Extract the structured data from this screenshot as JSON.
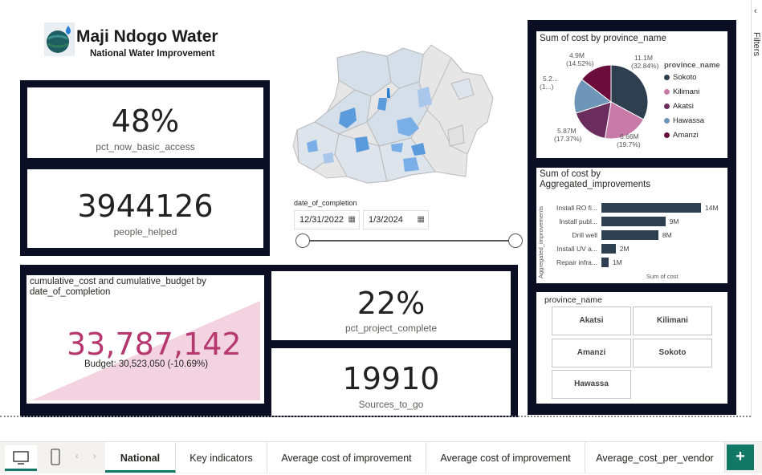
{
  "header": {
    "title": "Maji Ndogo Water",
    "subtitle": "National Water Improvement"
  },
  "kpis": {
    "pct_basic_value": "48%",
    "pct_basic_label": "pct_now_basic_access",
    "people_value": "3944126",
    "people_label": "people_helped",
    "pct_complete_value": "22%",
    "pct_complete_label": "pct_project_complete",
    "sources_value": "19910",
    "sources_label": "Sources_to_go"
  },
  "cumulative": {
    "title": "cumulative_cost and cumulative_budget by date_of_completion",
    "value": "33,787,142",
    "budget_text": "Budget: 30,523,050 (-10.69%)",
    "value_color": "#b5386e",
    "area_color": "#f2d3df"
  },
  "date_slicer": {
    "label": "date_of_completion",
    "start": "12/31/2022",
    "end": "1/3/2024"
  },
  "pie": {
    "title": "Sum of cost by province_name",
    "legend_title": "province_name",
    "labels": {
      "sokoto": "11.1M\n(32.84%)",
      "kilimani": "6.66M\n(19.7%)",
      "akatsi": "5.87M\n(17.37%)",
      "hawassa": "5.2...\n(1...)",
      "amanzi": "4.9M\n(14.52%)"
    }
  },
  "bar": {
    "title": "Sum of cost by Aggregated_improvements",
    "ylabel": "Aggregated_improvements",
    "xlabel": "Sum of cost"
  },
  "province_slicer": {
    "title": "province_name",
    "buttons": [
      "Akatsi",
      "Kilimani",
      "Amanzi",
      "Sokoto",
      "Hawassa"
    ]
  },
  "filters_pane": {
    "label": "Filters"
  },
  "tabs": [
    {
      "label": "National",
      "active": true
    },
    {
      "label": "Key indicators",
      "active": false
    },
    {
      "label": "Average cost of improvement",
      "active": false
    },
    {
      "label": "Average cost of improvement",
      "active": false
    },
    {
      "label": "Average_cost_per_vendor",
      "active": false
    }
  ],
  "add_page_label": "+",
  "chart_data": [
    {
      "type": "pie",
      "title": "Sum of cost by province_name",
      "categories": [
        "Sokoto",
        "Kilimani",
        "Akatsi",
        "Hawassa",
        "Amanzi"
      ],
      "values": [
        11.1,
        6.66,
        5.87,
        5.2,
        4.9
      ],
      "percent": [
        32.84,
        19.7,
        17.37,
        15.57,
        14.52
      ],
      "colors": [
        "#2e3f50",
        "#c87aa8",
        "#6b2d5e",
        "#6f96b8",
        "#6a0d3c"
      ],
      "legend": "right"
    },
    {
      "type": "bar",
      "orientation": "horizontal",
      "title": "Sum of cost by Aggregated_improvements",
      "categories": [
        "Install RO fi...",
        "Install publ...",
        "Drill well",
        "Install UV a...",
        "Repair infra..."
      ],
      "values": [
        14,
        9,
        8,
        2,
        1
      ],
      "value_labels": [
        "14M",
        "9M",
        "8M",
        "2M",
        "1M"
      ],
      "xlabel": "Sum of cost",
      "ylabel": "Aggregated_improvements",
      "color": "#2e3f50",
      "xlim": [
        0,
        14
      ]
    }
  ]
}
